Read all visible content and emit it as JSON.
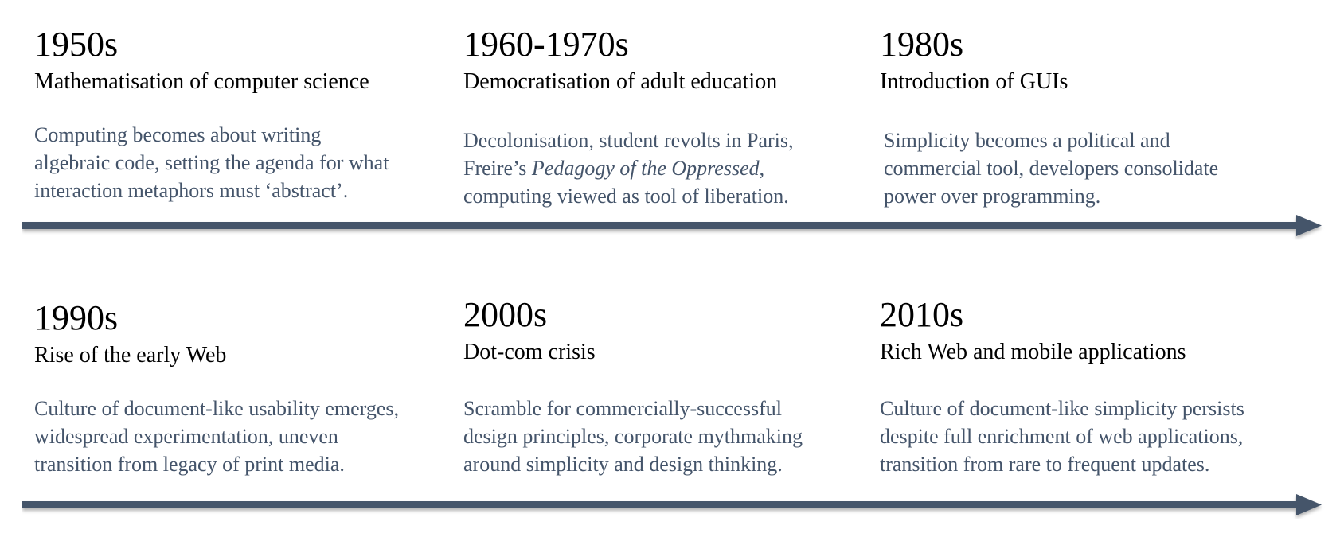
{
  "colors": {
    "text": "#000000",
    "description": "#44546a",
    "arrow": "#44546a"
  },
  "rows": [
    {
      "entries": [
        {
          "era": "1950s",
          "title": "Mathematisation of computer science",
          "lines": [
            "Computing becomes about writing",
            "algebraic code, setting the agenda for what",
            "interaction metaphors must ‘abstract’."
          ]
        },
        {
          "era": "1960-1970s",
          "title": "Democratisation of adult education",
          "line1": "Decolonisation, student revolts in Paris,",
          "line2_pre": "Freire’s ",
          "line2_italic": "Pedagogy of the Oppressed",
          "line2_post": ",",
          "line3": "computing viewed as tool of liberation."
        },
        {
          "era": "1980s",
          "title": "Introduction of GUIs",
          "lines": [
            "Simplicity becomes a political and",
            "commercial tool, developers consolidate",
            "power over programming."
          ]
        }
      ]
    },
    {
      "entries": [
        {
          "era": "1990s",
          "title": "Rise of the early Web",
          "lines": [
            "Culture of document-like usability emerges,",
            "widespread experimentation, uneven",
            "transition from legacy of print media."
          ]
        },
        {
          "era": "2000s",
          "title": "Dot-com crisis",
          "lines": [
            "Scramble for commercially-successful",
            "design principles, corporate mythmaking",
            "around simplicity and design thinking."
          ]
        },
        {
          "era": "2010s",
          "title": "Rich Web and mobile applications",
          "lines": [
            "Culture of document-like simplicity persists",
            "despite full enrichment of web applications,",
            "transition from rare to frequent updates."
          ]
        }
      ]
    }
  ]
}
